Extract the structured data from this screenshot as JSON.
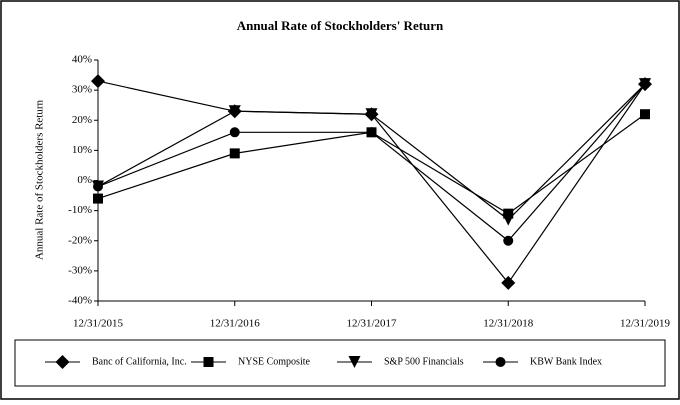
{
  "chart_data": {
    "type": "line",
    "title": "Annual Rate of Stockholders' Return",
    "y_label": "Annual Rate of Stockholders Return",
    "categories": [
      "12/31/2015",
      "12/31/2016",
      "12/31/2017",
      "12/31/2018",
      "12/31/2019"
    ],
    "series": [
      {
        "name": "Banc of California, Inc.",
        "color": "#000000",
        "marker": "diamond",
        "values": [
          33,
          23,
          22,
          -34,
          32
        ]
      },
      {
        "name": "NYSE Composite",
        "color": "#000000",
        "marker": "square",
        "values": [
          -6,
          9,
          16,
          -11,
          22
        ]
      },
      {
        "name": "S&P 500 Financials",
        "color": "#000000",
        "marker": "triangle-down",
        "values": [
          -2,
          23,
          22,
          -13,
          32
        ]
      },
      {
        "name": "KBW Bank Index",
        "color": "#000000",
        "marker": "circle",
        "values": [
          -2,
          16,
          16,
          -20,
          32
        ]
      }
    ],
    "ylim": [
      -40,
      40
    ],
    "yticks": [
      {
        "value": -40,
        "label": "-40%"
      },
      {
        "value": -30,
        "label": "-30%"
      },
      {
        "value": -20,
        "label": "-20%"
      },
      {
        "value": -10,
        "label": "-10%"
      },
      {
        "value": 0,
        "label": "0%"
      },
      {
        "value": 10,
        "label": "10%"
      },
      {
        "value": 20,
        "label": "20%"
      },
      {
        "value": 30,
        "label": "30%"
      },
      {
        "value": 40,
        "label": "40%"
      }
    ],
    "legend": "bottom"
  }
}
